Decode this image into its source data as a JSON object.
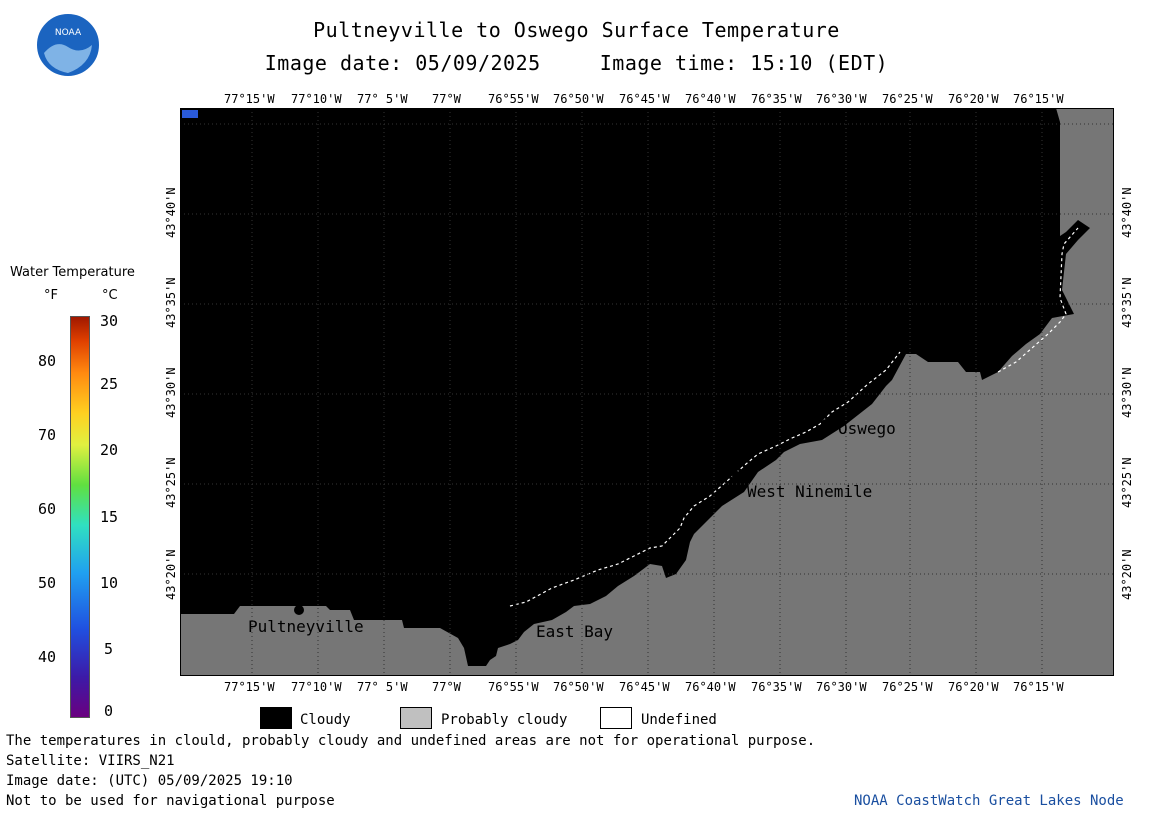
{
  "title": "Pultneyville to Oswego Surface Temperature",
  "subtitle_date": "Image date: 05/09/2025",
  "subtitle_time": "Image time: 15:10 (EDT)",
  "lon_labels": [
    "77°15'W",
    "77°10'W",
    "77° 5'W",
    "77°W",
    "76°55'W",
    "76°50'W",
    "76°45'W",
    "76°40'W",
    "76°35'W",
    "76°30'W",
    "76°25'W",
    "76°20'W",
    "76°15'W"
  ],
  "lat_labels": [
    "43°40'N",
    "43°35'N",
    "43°30'N",
    "43°25'N",
    "43°20'N"
  ],
  "places": {
    "pultneyville": "Pultneyville",
    "east_bay": "East Bay",
    "west_ninemile": "West Ninemile",
    "oswego": "Oswego"
  },
  "colorbar": {
    "title": "Water Temperature",
    "unit_f": "°F",
    "unit_c": "°C",
    "f_ticks": [
      "80",
      "70",
      "60",
      "50",
      "40"
    ],
    "c_ticks": [
      "30",
      "25",
      "20",
      "15",
      "10",
      "5",
      "0"
    ]
  },
  "legend": {
    "cloudy": "Cloudy",
    "probably_cloudy": "Probably cloudy",
    "undefined": "Undefined"
  },
  "footer": {
    "disclaimer": "The temperatures in clould, probably cloudy and undefined areas are not for operational purpose.",
    "satellite": "Satellite: VIIRS_N21",
    "utc": "Image date: (UTC) 05/09/2025  19:10",
    "nav": "Not to be used for navigational purpose",
    "credit": "NOAA CoastWatch Great Lakes Node",
    "logo_text": "NOAA"
  },
  "colors": {
    "cloudy": "#000000",
    "land": "#767676",
    "probably_cloudy": "#c0c0c0",
    "undefined": "#ffffff",
    "credit": "#1a4fa0",
    "noaa_blue": "#1a63b8"
  }
}
